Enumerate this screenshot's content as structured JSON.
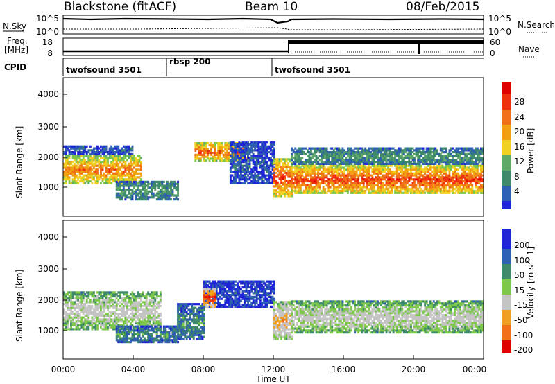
{
  "header": {
    "title": "Blackstone (fitACF)",
    "beam": "Beam 10",
    "date": "08/Feb/2015"
  },
  "noise_panel": {
    "left_label": "N.Sky",
    "right_label": "N.Search",
    "left_ticks": [
      "10^5",
      "10^0"
    ],
    "right_ticks": [
      "10^5",
      "10^0"
    ]
  },
  "freq_panel": {
    "left_label_1": "Freq.",
    "left_label_2": "[MHz]",
    "left_ticks": [
      "18",
      "8"
    ],
    "right_ticks": [
      "60",
      "0"
    ],
    "right_label": "Nave"
  },
  "cpid_panel": {
    "label": "CPID",
    "modes": [
      {
        "name": "twofsound 3501",
        "start_hour": 0,
        "end_hour": 6.0
      },
      {
        "name": "rbsp 200",
        "start_hour": 6.0,
        "end_hour": 12.0
      },
      {
        "name": "twofsound 3501",
        "start_hour": 12.0,
        "end_hour": 24.0
      }
    ]
  },
  "colors": {
    "power_scale": [
      "#1f25d6",
      "#2f5fb0",
      "#3e8a6a",
      "#60a868",
      "#7dc84a",
      "#f0d020",
      "#f0a010",
      "#f07018",
      "#ee3010",
      "#e00000"
    ],
    "velocity_scale": [
      "#1f25d6",
      "#2f5fb0",
      "#3e8a6a",
      "#7dc84a",
      "#c4c4c4",
      "#c4c4c4",
      "#f0a020",
      "#f07018",
      "#ee3010",
      "#e00000"
    ]
  },
  "chart_data": [
    {
      "type": "heatmap",
      "name": "power",
      "ylabel": "Slant Range [km]",
      "xlabel": "Time UT",
      "xlim": [
        0,
        24
      ],
      "ylim": [
        200,
        4500
      ],
      "yticks": [
        "1000",
        "2000",
        "3000",
        "4000"
      ],
      "colorbar": {
        "label": "Power [dB]",
        "ticks": [
          "28",
          "24",
          "20",
          "16",
          "12",
          "8",
          "4"
        ],
        "range": [
          0,
          32
        ]
      },
      "bands": [
        {
          "t0": 0.0,
          "t1": 4.5,
          "r0": 1200,
          "r1": 2100,
          "level": 0.75
        },
        {
          "t0": 0.0,
          "t1": 4.0,
          "r0": 2100,
          "r1": 2400,
          "level": 0.15
        },
        {
          "t0": 3.0,
          "t1": 6.5,
          "r0": 700,
          "r1": 1300,
          "level": 0.3
        },
        {
          "t0": 7.5,
          "t1": 10.5,
          "r0": 1900,
          "r1": 2500,
          "level": 0.8
        },
        {
          "t0": 9.5,
          "t1": 12.0,
          "r0": 1200,
          "r1": 2500,
          "level": 0.15
        },
        {
          "t0": 12.0,
          "t1": 13.0,
          "r0": 800,
          "r1": 2000,
          "level": 0.85
        },
        {
          "t0": 13.0,
          "t1": 24.0,
          "r0": 900,
          "r1": 1800,
          "level": 0.85
        },
        {
          "t0": 13.0,
          "t1": 24.0,
          "r0": 1800,
          "r1": 2300,
          "level": 0.3
        }
      ]
    },
    {
      "type": "heatmap",
      "name": "velocity",
      "ylabel": "Slant Range [km]",
      "xlabel": "Time UT",
      "xlim": [
        0,
        24
      ],
      "ylim": [
        200,
        4500
      ],
      "yticks": [
        "1000",
        "2000",
        "3000",
        "4000"
      ],
      "xticks": [
        "00:00",
        "04:00",
        "08:00",
        "12:00",
        "16:00",
        "20:00",
        "00:00"
      ],
      "colorbar": {
        "label": "Velocity [m s^-1]",
        "ticks": [
          "200",
          "100",
          "50",
          "15",
          "-15",
          "-50",
          "-100",
          "-200"
        ],
        "range": [
          -250,
          250
        ]
      },
      "bands": [
        {
          "t0": 0.0,
          "t1": 5.5,
          "r0": 1100,
          "r1": 2300,
          "level": 0.5
        },
        {
          "t0": 3.0,
          "t1": 6.5,
          "r0": 700,
          "r1": 1200,
          "level": 0.25
        },
        {
          "t0": 6.5,
          "t1": 8.0,
          "r0": 800,
          "r1": 1900,
          "level": 0.25
        },
        {
          "t0": 8.0,
          "t1": 12.0,
          "r0": 1800,
          "r1": 2600,
          "level": 0.12
        },
        {
          "t0": 8.0,
          "t1": 8.6,
          "r0": 1800,
          "r1": 2400,
          "level": 0.9
        },
        {
          "t0": 12.0,
          "t1": 13.0,
          "r0": 800,
          "r1": 2000,
          "level": 0.65
        },
        {
          "t0": 13.0,
          "t1": 24.0,
          "r0": 1000,
          "r1": 2000,
          "level": 0.5
        }
      ]
    }
  ]
}
